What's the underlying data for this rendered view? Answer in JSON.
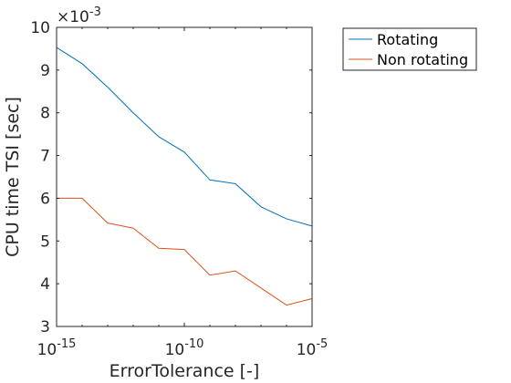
{
  "chart_data": {
    "type": "line",
    "xlabel": "ErrorTolerance [-]",
    "ylabel": "CPU time TSI [sec]",
    "x_scale": "log",
    "xlim": [
      1e-15,
      1e-05
    ],
    "ylim": [
      0.003,
      0.01
    ],
    "x_ticks": [
      1e-15,
      1e-10,
      1e-05
    ],
    "x_tick_labels": [
      {
        "base": "10",
        "exp": "-15"
      },
      {
        "base": "10",
        "exp": "-10"
      },
      {
        "base": "10",
        "exp": "-5"
      }
    ],
    "y_ticks": [
      0.003,
      0.004,
      0.005,
      0.006,
      0.007,
      0.008,
      0.009,
      0.01
    ],
    "y_tick_labels": [
      "3",
      "4",
      "5",
      "6",
      "7",
      "8",
      "9",
      "10"
    ],
    "y_multiplier": {
      "base": "×10",
      "exp": "-3"
    },
    "grid": false,
    "legend_position": "outside-top-right",
    "x": [
      1e-15,
      1e-14,
      1e-13,
      1e-12,
      1e-11,
      1e-10,
      1e-09,
      1e-08,
      1e-07,
      1e-06,
      1e-05
    ],
    "series": [
      {
        "name": "Rotating",
        "color": "#0072BD",
        "values": [
          0.00953,
          0.00915,
          0.0086,
          0.008,
          0.00744,
          0.00708,
          0.00643,
          0.00634,
          0.0058,
          0.00552,
          0.00535
        ]
      },
      {
        "name": "Non rotating",
        "color": "#D95319",
        "values": [
          0.006,
          0.006,
          0.00542,
          0.0053,
          0.00483,
          0.0048,
          0.0042,
          0.0043,
          0.0039,
          0.0035,
          0.00365
        ]
      }
    ]
  }
}
